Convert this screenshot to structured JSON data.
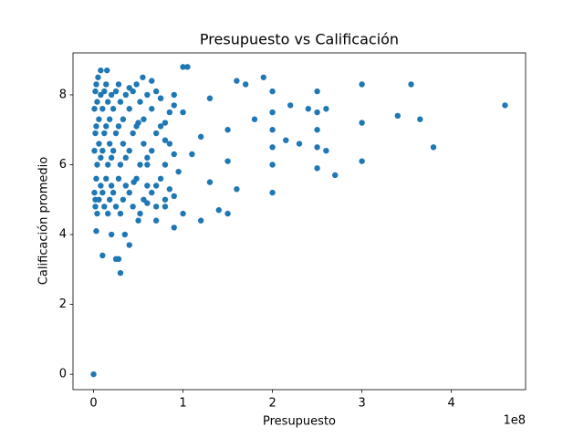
{
  "chart_data": {
    "type": "scatter",
    "title": "Presupuesto vs Calificación",
    "x_label": "Presupuesto",
    "y_label": "Calificación promedio",
    "x_offset_label": "1e8",
    "color": "#1f77b4",
    "xlim": [
      -23000000,
      483000000
    ],
    "xticks": [
      0,
      {
        "value": 100000000,
        "label": "1"
      },
      {
        "value": 200000000,
        "label": "2"
      },
      {
        "value": 300000000,
        "label": "3"
      },
      {
        "value": 400000000,
        "label": "4"
      }
    ],
    "ylim": [
      -0.44,
      9.2
    ],
    "yticks": [
      0,
      2,
      4,
      6,
      8
    ],
    "x": [
      0,
      460000000,
      380000000,
      365000000,
      355000000,
      340000000,
      300000000,
      300000000,
      300000000,
      270000000,
      250000000,
      250000000,
      250000000,
      250000000,
      250000000,
      260000000,
      260000000,
      240000000,
      230000000,
      220000000,
      215000000,
      200000000,
      200000000,
      200000000,
      200000000,
      200000000,
      200000000,
      190000000,
      180000000,
      170000000,
      160000000,
      160000000,
      150000000,
      150000000,
      150000000,
      140000000,
      130000000,
      130000000,
      120000000,
      120000000,
      110000000,
      105000000,
      100000000,
      100000000,
      100000000,
      95000000,
      90000000,
      90000000,
      80000000,
      80000000,
      75000000,
      70000000,
      70000000,
      65000000,
      60000000,
      60000000,
      55000000,
      50000000,
      50000000,
      45000000,
      40000000,
      40000000,
      35000000,
      30000000,
      28000000,
      25000000,
      20000000,
      15000000,
      10000000,
      8000000,
      5000000,
      3000000,
      2000000,
      1000000,
      1000000,
      1000000,
      2000000,
      2000000,
      2000000,
      3000000,
      3000000,
      3000000,
      4000000,
      4000000,
      4000000,
      6000000,
      6000000,
      6000000,
      8000000,
      8000000,
      8000000,
      10000000,
      10000000,
      10000000,
      12000000,
      12000000,
      12000000,
      14000000,
      14000000,
      14000000,
      16000000,
      16000000,
      16000000,
      18000000,
      18000000,
      18000000,
      20000000,
      20000000,
      20000000,
      22000000,
      22000000,
      22000000,
      25000000,
      25000000,
      25000000,
      28000000,
      28000000,
      28000000,
      30000000,
      30000000,
      30000000,
      33000000,
      33000000,
      33000000,
      36000000,
      36000000,
      36000000,
      40000000,
      40000000,
      40000000,
      44000000,
      44000000,
      44000000,
      48000000,
      48000000,
      48000000,
      52000000,
      52000000,
      52000000,
      56000000,
      56000000,
      56000000,
      60000000,
      60000000,
      60000000,
      65000000,
      65000000,
      65000000,
      70000000,
      70000000,
      70000000,
      75000000,
      75000000,
      75000000,
      80000000,
      80000000,
      80000000,
      85000000,
      85000000,
      85000000,
      90000000,
      90000000,
      90000000
    ],
    "y": [
      0,
      7.7,
      6.5,
      7.3,
      8.3,
      7.4,
      8.3,
      7.2,
      6.1,
      5.7,
      8.1,
      7.5,
      7.0,
      6.5,
      5.9,
      7.6,
      6.4,
      7.6,
      6.6,
      7.7,
      6.7,
      8.1,
      7.5,
      7.0,
      6.5,
      6.0,
      5.2,
      8.5,
      7.3,
      8.3,
      8.4,
      5.3,
      7.0,
      6.1,
      4.6,
      4.7,
      7.9,
      5.5,
      6.8,
      4.4,
      6.3,
      8.8,
      8.8,
      4.6,
      7.5,
      5.8,
      4.2,
      8.0,
      6.7,
      4.8,
      7.9,
      5.4,
      4.4,
      8.4,
      6.0,
      4.9,
      8.5,
      4.4,
      7.2,
      5.5,
      3.7,
      8.2,
      4.0,
      2.9,
      3.3,
      3.3,
      4.0,
      8.7,
      3.4,
      8.7,
      8.5,
      4.1,
      5.0,
      5.2,
      6.4,
      7.6,
      4.8,
      6.9,
      8.1,
      5.6,
      7.1,
      8.3,
      4.6,
      6.0,
      7.8,
      5.0,
      6.6,
      7.3,
      5.4,
      6.2,
      8.0,
      5.2,
      6.4,
      7.6,
      4.8,
      6.9,
      8.1,
      5.6,
      7.1,
      8.3,
      4.6,
      6.0,
      7.8,
      5.0,
      6.6,
      7.3,
      5.4,
      6.2,
      8.0,
      5.2,
      6.4,
      7.6,
      4.8,
      6.9,
      8.1,
      5.6,
      7.1,
      8.3,
      4.6,
      6.0,
      7.8,
      5.0,
      6.6,
      7.3,
      5.4,
      6.2,
      8.0,
      5.2,
      6.4,
      7.6,
      4.8,
      6.9,
      8.1,
      5.6,
      7.1,
      8.3,
      4.6,
      6.0,
      7.8,
      5.0,
      6.6,
      7.3,
      5.4,
      6.2,
      8.0,
      5.2,
      6.4,
      7.6,
      4.8,
      6.9,
      8.1,
      5.6,
      7.1,
      7.9,
      5.0,
      6.0,
      7.2,
      5.3,
      6.6,
      7.5,
      5.1,
      6.3,
      7.7
    ]
  }
}
